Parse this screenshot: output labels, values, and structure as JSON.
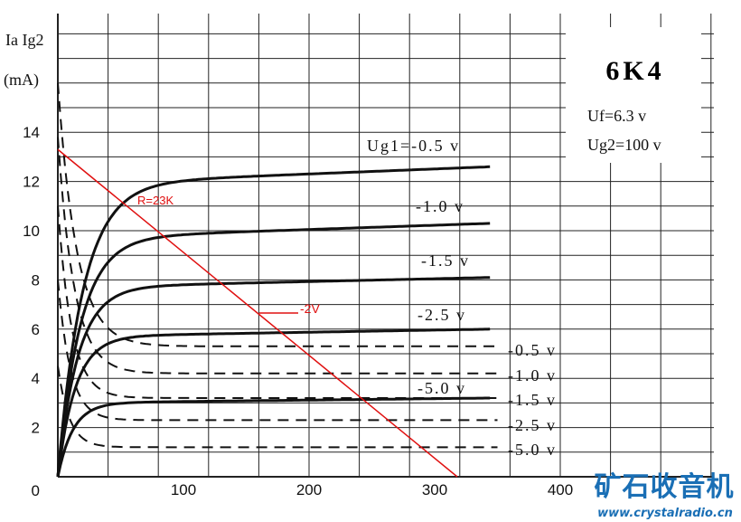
{
  "chart_data": {
    "type": "line",
    "title": "6K4",
    "conditions": [
      "Uf=6.3 v",
      "Ug2=100 v"
    ],
    "ylabel_line1": "Ia Ig2",
    "ylabel_line2": "(mA)",
    "xlabel": "",
    "xlim": [
      0,
      400
    ],
    "ylim": [
      0,
      16
    ],
    "x_ticks": [
      "100",
      "200",
      "300",
      "400"
    ],
    "y_ticks": [
      "0",
      "2",
      "4",
      "6",
      "8",
      "10",
      "12",
      "14"
    ],
    "grid": true,
    "anode_curves": [
      {
        "label": "Ug1=-0.5 v",
        "sat": 11.9,
        "end": 12.6,
        "knee": 20
      },
      {
        "label": "-1.0 v",
        "sat": 9.7,
        "end": 10.3,
        "knee": 18
      },
      {
        "label": "-1.5 v",
        "sat": 7.7,
        "end": 8.1,
        "knee": 16
      },
      {
        "label": "-2.5 v",
        "sat": 5.7,
        "end": 6.0,
        "knee": 14
      },
      {
        "label": "-5.0 v",
        "sat": 3.0,
        "end": 3.2,
        "knee": 12
      }
    ],
    "screen_curves": [
      {
        "label": "-0.5 v",
        "start": 16.0,
        "end": 5.3,
        "knee": 15
      },
      {
        "label": "-1.0 v",
        "start": 13.8,
        "end": 4.2,
        "knee": 13
      },
      {
        "label": "-1.5 v",
        "start": 11.0,
        "end": 3.2,
        "knee": 11
      },
      {
        "label": "-2.5 v",
        "start": 8.0,
        "end": 2.3,
        "knee": 10
      },
      {
        "label": "-5.0 v",
        "start": 4.5,
        "end": 1.2,
        "knee": 9
      }
    ],
    "load_line": {
      "label": "R=23K",
      "x": [
        0,
        318
      ],
      "y": [
        13.3,
        0
      ],
      "color": "#e01010"
    },
    "operating_point_label": "-2V",
    "watermark": {
      "cn": "矿石收音机",
      "url": "www.crystalradio.cn"
    }
  }
}
